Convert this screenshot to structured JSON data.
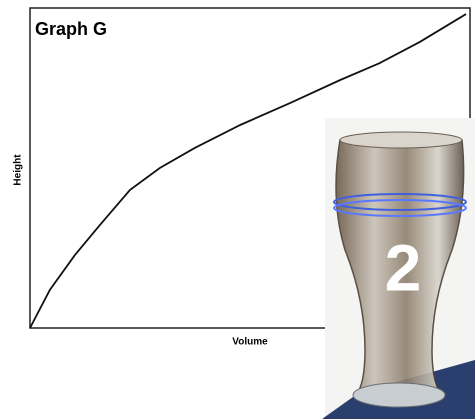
{
  "chart_data": {
    "type": "line",
    "title": "Graph G",
    "x_label": "Volume",
    "y_label": "Height",
    "x": [
      0,
      4.5,
      10.2,
      15.9,
      22.7,
      29.5,
      37.5,
      47.7,
      59.1,
      70.5,
      79.5,
      88.6,
      99.1
    ],
    "series": [
      {
        "color": "#111111",
        "values": [
          0,
          11.9,
          22.8,
          32.2,
          43.1,
          50,
          56.3,
          63.4,
          70.3,
          77.5,
          82.8,
          89.4,
          98.1
        ]
      }
    ],
    "xlim": [
      0,
      100
    ],
    "ylim": [
      0,
      100
    ],
    "annotation": "2"
  }
}
